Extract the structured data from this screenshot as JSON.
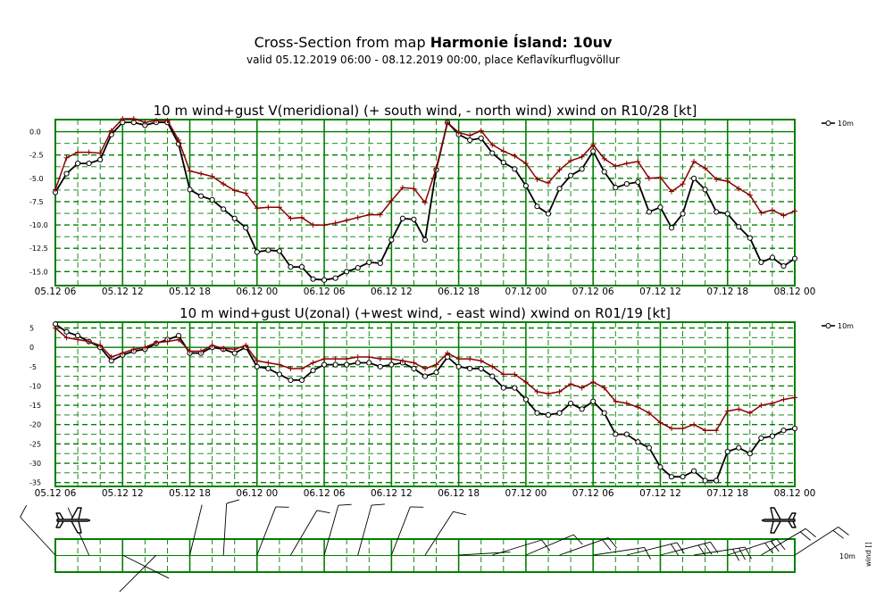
{
  "header": {
    "title_prefix": "Cross-Section from map ",
    "title_bold": "Harmonie Ísland: 10uv",
    "subtitle": "valid 05.12.2019 06:00 - 08.12.2019 00:00, place Keflavíkurflugvöllur"
  },
  "colors": {
    "grid": "#008000",
    "line_10m": "#000000",
    "line_gust": "#8b0000"
  },
  "wind_panel": {
    "legend_label": "10m",
    "axis_label": "wind []"
  },
  "chart_data": [
    {
      "type": "line",
      "title": "10 m wind+gust V(meridional) (+ south wind, - north wind) xwind on R10/28 [kt]",
      "x_tick_labels": [
        "05.12 06",
        "05.12 12",
        "05.12 18",
        "06.12 00",
        "06.12 06",
        "06.12 12",
        "06.12 18",
        "07.12 00",
        "07.12 06",
        "07.12 12",
        "07.12 18",
        "08.12 00"
      ],
      "x_range_hours": [
        0,
        66
      ],
      "x_step_hours": 1,
      "y_ticks": [
        0.0,
        -2.5,
        -5.0,
        -7.5,
        -10.0,
        -12.5,
        -15.0
      ],
      "y_tick_labels": [
        "0.0",
        "-2.5",
        "-5.0",
        "-7.5",
        "-10.0",
        "-12.5",
        "-15.0"
      ],
      "ylim": [
        -16.5,
        1.3
      ],
      "legend": [
        "10m"
      ],
      "series": [
        {
          "name": "10m",
          "values": [
            -6.5,
            -4.5,
            -3.4,
            -3.4,
            -3.0,
            -0.3,
            1.0,
            1.0,
            0.7,
            1.0,
            1.0,
            -1.3,
            -6.2,
            -6.9,
            -7.3,
            -8.3,
            -9.3,
            -10.3,
            -12.9,
            -12.7,
            -12.8,
            -14.5,
            -14.5,
            -15.8,
            -15.9,
            -15.7,
            -15.0,
            -14.6,
            -14.0,
            -14.1,
            -11.6,
            -9.3,
            -9.4,
            -11.6,
            -4.1,
            1.0,
            -0.3,
            -0.9,
            -0.7,
            -2.3,
            -3.3,
            -4.0,
            -5.8,
            -8.0,
            -8.8,
            -6.1,
            -4.7,
            -4.0,
            -2.1,
            -4.3,
            -6.0,
            -5.6,
            -5.4,
            -8.6,
            -8.1,
            -10.3,
            -8.8,
            -5.0,
            -6.2,
            -8.6,
            -8.8,
            -10.2,
            -11.4,
            -14.0,
            -13.5,
            -14.4,
            -13.6
          ]
        },
        {
          "name": "gust",
          "values": [
            -6.2,
            -2.8,
            -2.2,
            -2.2,
            -2.3,
            0.1,
            1.4,
            1.4,
            1.0,
            1.2,
            1.2,
            -0.9,
            -4.2,
            -4.5,
            -4.8,
            -5.6,
            -6.3,
            -6.6,
            -8.2,
            -8.1,
            -8.1,
            -9.3,
            -9.2,
            -10.0,
            -10.0,
            -9.8,
            -9.5,
            -9.2,
            -8.9,
            -8.9,
            -7.4,
            -6.0,
            -6.1,
            -7.6,
            -3.9,
            1.0,
            -0.1,
            -0.4,
            0.1,
            -1.4,
            -2.1,
            -2.6,
            -3.4,
            -5.1,
            -5.5,
            -4.1,
            -3.1,
            -2.7,
            -1.4,
            -2.9,
            -3.7,
            -3.4,
            -3.2,
            -5.0,
            -4.9,
            -6.4,
            -5.6,
            -3.2,
            -3.9,
            -5.1,
            -5.3,
            -6.1,
            -6.8,
            -8.7,
            -8.4,
            -9.0,
            -8.5
          ]
        }
      ]
    },
    {
      "type": "line",
      "title": "10 m wind+gust U(zonal) (+west wind, - east wind) xwind on R01/19 [kt]",
      "x_tick_labels": [
        "05.12 06",
        "05.12 12",
        "05.12 18",
        "06.12 00",
        "06.12 06",
        "06.12 12",
        "06.12 18",
        "07.12 00",
        "07.12 06",
        "07.12 12",
        "07.12 18",
        "08.12 00"
      ],
      "x_range_hours": [
        0,
        66
      ],
      "x_step_hours": 1,
      "y_ticks": [
        5,
        0,
        -5,
        -10,
        -15,
        -20,
        -25,
        -30,
        -35
      ],
      "y_tick_labels": [
        "5",
        "0",
        "-5",
        "-10",
        "-15",
        "-20",
        "-25",
        "-30",
        "-35"
      ],
      "ylim": [
        -36,
        6.5
      ],
      "legend": [
        "10m"
      ],
      "series": [
        {
          "name": "10m",
          "values": [
            6.0,
            4.0,
            3.0,
            1.5,
            0.0,
            -3.5,
            -2.0,
            -1.0,
            -0.5,
            1.0,
            2.0,
            3.0,
            -1.5,
            -1.5,
            0.0,
            -0.5,
            -1.5,
            0.0,
            -5.0,
            -5.5,
            -7.0,
            -8.5,
            -8.5,
            -6.0,
            -4.5,
            -4.5,
            -4.5,
            -4.0,
            -4.0,
            -5.0,
            -4.5,
            -4.0,
            -5.5,
            -7.5,
            -6.5,
            -2.5,
            -5.0,
            -5.5,
            -5.5,
            -7.5,
            -10.5,
            -10.5,
            -13.5,
            -17.0,
            -17.5,
            -17.0,
            -14.5,
            -16.0,
            -14.0,
            -17.0,
            -22.5,
            -22.5,
            -24.5,
            -26.0,
            -31.0,
            -33.5,
            -33.5,
            -32.0,
            -34.5,
            -34.5,
            -27.0,
            -26.0,
            -27.5,
            -23.5,
            -23.0,
            -21.5,
            -21.0
          ]
        },
        {
          "name": "gust",
          "values": [
            5.0,
            2.5,
            2.0,
            1.5,
            0.5,
            -2.5,
            -1.5,
            -0.5,
            0.0,
            1.2,
            1.5,
            2.0,
            -1.0,
            -1.0,
            0.5,
            -0.3,
            -0.5,
            0.5,
            -3.5,
            -4.0,
            -4.5,
            -5.5,
            -5.5,
            -4.0,
            -3.0,
            -3.0,
            -3.0,
            -2.5,
            -2.5,
            -3.0,
            -3.0,
            -3.5,
            -4.0,
            -5.5,
            -4.5,
            -1.5,
            -3.0,
            -3.0,
            -3.5,
            -5.0,
            -7.0,
            -7.0,
            -9.0,
            -11.5,
            -12.0,
            -11.5,
            -9.5,
            -10.5,
            -9.0,
            -10.5,
            -14.0,
            -14.5,
            -15.5,
            -17.0,
            -19.5,
            -21.0,
            -21.0,
            -20.0,
            -21.5,
            -21.5,
            -16.5,
            -16.0,
            -17.0,
            -15.0,
            -14.5,
            -13.5,
            -13.0
          ]
        }
      ]
    }
  ]
}
